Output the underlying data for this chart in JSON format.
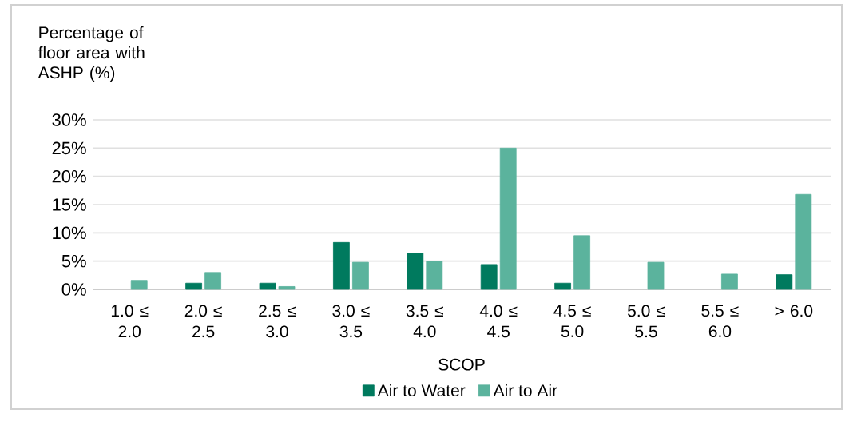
{
  "chart_data": {
    "type": "bar",
    "ylabel": "Percentage of floor area with ASHP (%)",
    "xlabel": "SCOP",
    "categories": [
      "1.0 ≤ 2.0",
      "2.0 ≤ 2.5",
      "2.5 ≤ 3.0",
      "3.0 ≤ 3.5",
      "3.5 ≤ 4.0",
      "4.0 ≤ 4.5",
      "4.5 ≤ 5.0",
      "5.0 ≤ 5.5",
      "5.5 ≤ 6.0",
      "> 6.0"
    ],
    "series": [
      {
        "name": "Air to Water",
        "color": "#007a5e",
        "values": [
          null,
          1.1,
          1.1,
          8.3,
          6.4,
          4.4,
          1.1,
          null,
          null,
          2.6
        ]
      },
      {
        "name": "Air to Air",
        "color": "#5bb39d",
        "values": [
          1.6,
          3.0,
          0.5,
          4.8,
          5.0,
          25.0,
          9.5,
          4.8,
          2.7,
          16.8
        ]
      }
    ],
    "ylim": [
      0,
      30
    ],
    "yticks": [
      {
        "value": 0,
        "label": "0%"
      },
      {
        "value": 5,
        "label": "5%"
      },
      {
        "value": 10,
        "label": "10%"
      },
      {
        "value": 15,
        "label": "15%"
      },
      {
        "value": 20,
        "label": "20%"
      },
      {
        "value": 25,
        "label": "25%"
      },
      {
        "value": 30,
        "label": "30%"
      }
    ],
    "grid": "y",
    "legend": "bottom"
  }
}
